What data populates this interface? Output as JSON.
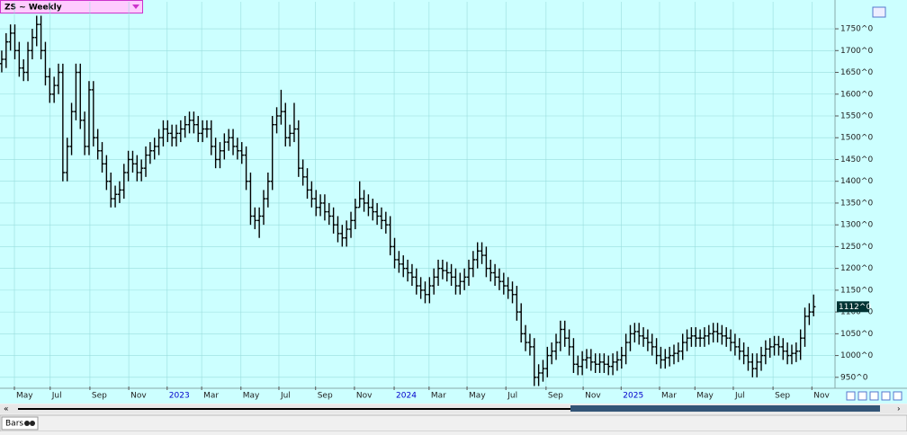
{
  "chart_data": {
    "type": "ohlc",
    "title": "ZS ~ Weekly",
    "color": "#000000",
    "grid": true,
    "open": [
      1670,
      1680,
      1720,
      1740,
      1700,
      1660,
      1650,
      1700,
      1730,
      1760,
      1700,
      1640,
      1600,
      1620,
      1650,
      1420,
      1480,
      1560,
      1650,
      1540,
      1480,
      1610,
      1500,
      1470,
      1440,
      1400,
      1360,
      1370,
      1380,
      1420,
      1450,
      1440,
      1420,
      1430,
      1460,
      1470,
      1480,
      1500,
      1520,
      1510,
      1500,
      1510,
      1520,
      1530,
      1540,
      1530,
      1510,
      1520,
      1520,
      1480,
      1450,
      1470,
      1490,
      1500,
      1480,
      1470,
      1460,
      1400,
      1320,
      1310,
      1320,
      1360,
      1400,
      1530,
      1550,
      1560,
      1500,
      1510,
      1520,
      1430,
      1410,
      1380,
      1360,
      1340,
      1350,
      1330,
      1320,
      1300,
      1280,
      1270,
      1290,
      1310,
      1340,
      1360,
      1350,
      1340,
      1330,
      1320,
      1310,
      1300,
      1250,
      1220,
      1210,
      1200,
      1190,
      1180,
      1160,
      1150,
      1140,
      1160,
      1180,
      1200,
      1195,
      1190,
      1180,
      1160,
      1170,
      1180,
      1200,
      1220,
      1240,
      1230,
      1200,
      1190,
      1180,
      1170,
      1160,
      1150,
      1140,
      1100,
      1050,
      1030,
      1020,
      950,
      960,
      970,
      1000,
      1010,
      1030,
      1060,
      1040,
      1020,
      980,
      975,
      990,
      995,
      985,
      980,
      985,
      980,
      975,
      985,
      990,
      1000,
      1030,
      1050,
      1055,
      1045,
      1040,
      1030,
      1020,
      1000,
      990,
      995,
      1000,
      1005,
      1010,
      1030,
      1040,
      1045,
      1040,
      1040,
      1045,
      1050,
      1055,
      1050,
      1045,
      1040,
      1030,
      1020,
      1010,
      1000,
      985,
      970,
      985,
      1000,
      1015,
      1020,
      1025,
      1020,
      1010,
      1000,
      1005,
      1010,
      1040,
      1090,
      1100
    ],
    "high": [
      1700,
      1740,
      1760,
      1760,
      1720,
      1680,
      1720,
      1750,
      1780,
      1780,
      1720,
      1660,
      1640,
      1670,
      1670,
      1500,
      1580,
      1670,
      1670,
      1560,
      1630,
      1630,
      1520,
      1490,
      1460,
      1420,
      1390,
      1400,
      1440,
      1470,
      1470,
      1460,
      1450,
      1480,
      1490,
      1500,
      1520,
      1540,
      1540,
      1530,
      1530,
      1540,
      1550,
      1560,
      1560,
      1550,
      1540,
      1540,
      1540,
      1500,
      1490,
      1510,
      1520,
      1520,
      1500,
      1490,
      1480,
      1420,
      1340,
      1340,
      1380,
      1420,
      1550,
      1570,
      1610,
      1580,
      1530,
      1580,
      1540,
      1450,
      1430,
      1400,
      1380,
      1370,
      1370,
      1350,
      1340,
      1320,
      1300,
      1310,
      1330,
      1360,
      1400,
      1380,
      1370,
      1360,
      1350,
      1340,
      1330,
      1320,
      1270,
      1240,
      1230,
      1220,
      1210,
      1200,
      1180,
      1170,
      1180,
      1200,
      1220,
      1220,
      1215,
      1210,
      1200,
      1190,
      1200,
      1220,
      1240,
      1260,
      1260,
      1250,
      1220,
      1210,
      1200,
      1190,
      1180,
      1170,
      1160,
      1120,
      1070,
      1050,
      1040,
      980,
      990,
      1020,
      1030,
      1050,
      1080,
      1080,
      1060,
      1040,
      1000,
      1010,
      1015,
      1015,
      1005,
      1005,
      1005,
      1000,
      1005,
      1010,
      1020,
      1050,
      1070,
      1075,
      1075,
      1065,
      1060,
      1050,
      1040,
      1020,
      1015,
      1020,
      1025,
      1030,
      1050,
      1060,
      1065,
      1065,
      1060,
      1065,
      1070,
      1075,
      1075,
      1070,
      1065,
      1060,
      1050,
      1040,
      1030,
      1020,
      1005,
      1005,
      1020,
      1035,
      1040,
      1045,
      1045,
      1040,
      1030,
      1025,
      1030,
      1060,
      1110,
      1120,
      1140
    ],
    "low": [
      1650,
      1660,
      1700,
      1680,
      1640,
      1630,
      1630,
      1680,
      1710,
      1680,
      1620,
      1580,
      1580,
      1600,
      1400,
      1400,
      1460,
      1540,
      1520,
      1460,
      1460,
      1480,
      1450,
      1420,
      1380,
      1340,
      1340,
      1350,
      1360,
      1400,
      1420,
      1400,
      1400,
      1410,
      1440,
      1450,
      1460,
      1480,
      1490,
      1480,
      1480,
      1490,
      1500,
      1510,
      1510,
      1490,
      1490,
      1500,
      1460,
      1430,
      1430,
      1450,
      1470,
      1460,
      1450,
      1440,
      1380,
      1300,
      1290,
      1270,
      1300,
      1340,
      1380,
      1510,
      1530,
      1480,
      1480,
      1490,
      1410,
      1390,
      1360,
      1340,
      1320,
      1320,
      1310,
      1300,
      1280,
      1260,
      1250,
      1250,
      1270,
      1290,
      1340,
      1330,
      1320,
      1310,
      1300,
      1290,
      1280,
      1230,
      1200,
      1190,
      1180,
      1170,
      1160,
      1140,
      1130,
      1120,
      1120,
      1140,
      1160,
      1175,
      1170,
      1160,
      1140,
      1140,
      1150,
      1160,
      1180,
      1200,
      1210,
      1180,
      1170,
      1160,
      1150,
      1140,
      1130,
      1120,
      1080,
      1030,
      1010,
      1000,
      930,
      930,
      940,
      950,
      980,
      990,
      1010,
      1020,
      1000,
      960,
      955,
      955,
      970,
      965,
      960,
      960,
      960,
      955,
      955,
      965,
      970,
      980,
      1010,
      1030,
      1025,
      1020,
      1010,
      1000,
      980,
      970,
      970,
      975,
      980,
      985,
      990,
      1010,
      1020,
      1020,
      1020,
      1020,
      1025,
      1030,
      1030,
      1025,
      1020,
      1010,
      1000,
      990,
      980,
      965,
      950,
      950,
      965,
      980,
      995,
      1000,
      1000,
      990,
      980,
      980,
      985,
      990,
      1020,
      1070,
      1090
    ],
    "close": [
      1680,
      1720,
      1740,
      1700,
      1660,
      1650,
      1700,
      1730,
      1760,
      1700,
      1640,
      1600,
      1620,
      1650,
      1420,
      1480,
      1560,
      1650,
      1540,
      1480,
      1610,
      1500,
      1470,
      1440,
      1400,
      1360,
      1370,
      1380,
      1420,
      1450,
      1440,
      1420,
      1430,
      1460,
      1470,
      1480,
      1500,
      1520,
      1510,
      1500,
      1510,
      1520,
      1530,
      1540,
      1530,
      1510,
      1520,
      1520,
      1480,
      1450,
      1470,
      1490,
      1500,
      1480,
      1470,
      1460,
      1400,
      1320,
      1310,
      1320,
      1360,
      1400,
      1530,
      1550,
      1560,
      1500,
      1510,
      1520,
      1430,
      1410,
      1380,
      1360,
      1340,
      1350,
      1330,
      1320,
      1300,
      1280,
      1270,
      1290,
      1310,
      1340,
      1360,
      1350,
      1340,
      1330,
      1320,
      1310,
      1300,
      1250,
      1220,
      1210,
      1200,
      1190,
      1180,
      1160,
      1150,
      1140,
      1160,
      1180,
      1200,
      1195,
      1190,
      1180,
      1160,
      1170,
      1180,
      1200,
      1220,
      1240,
      1230,
      1200,
      1190,
      1180,
      1170,
      1160,
      1150,
      1140,
      1100,
      1050,
      1030,
      1020,
      950,
      960,
      970,
      1000,
      1010,
      1030,
      1060,
      1040,
      1020,
      980,
      975,
      990,
      995,
      985,
      980,
      985,
      980,
      975,
      985,
      990,
      1000,
      1030,
      1050,
      1055,
      1045,
      1040,
      1030,
      1020,
      1000,
      990,
      995,
      1000,
      1005,
      1010,
      1030,
      1040,
      1045,
      1040,
      1040,
      1045,
      1050,
      1055,
      1050,
      1045,
      1040,
      1030,
      1020,
      1010,
      1000,
      985,
      970,
      985,
      1000,
      1015,
      1020,
      1025,
      1020,
      1010,
      1000,
      1005,
      1010,
      1040,
      1090,
      1100,
      1112
    ],
    "xlim": [
      -0.4,
      190.9
    ],
    "ylim": [
      929,
      1812
    ],
    "xticks": [
      {
        "value": 2.9,
        "label": "May"
      },
      {
        "value": 11.1,
        "label": "Jul"
      },
      {
        "value": 20.2,
        "label": "Sep"
      },
      {
        "value": 29.1,
        "label": "Nov"
      },
      {
        "value": 37.9,
        "label": "2023"
      },
      {
        "value": 45.8,
        "label": "Mar"
      },
      {
        "value": 54.8,
        "label": "May"
      },
      {
        "value": 63.5,
        "label": "Jul"
      },
      {
        "value": 71.9,
        "label": "Sep"
      },
      {
        "value": 80.8,
        "label": "Nov"
      },
      {
        "value": 89.9,
        "label": "2024"
      },
      {
        "value": 97.9,
        "label": "Mar"
      },
      {
        "value": 106.6,
        "label": "May"
      },
      {
        "value": 115.5,
        "label": "Jul"
      },
      {
        "value": 124.7,
        "label": "Sep"
      },
      {
        "value": 133.2,
        "label": "Nov"
      },
      {
        "value": 141.9,
        "label": "2025"
      },
      {
        "value": 150.7,
        "label": "Mar"
      },
      {
        "value": 158.8,
        "label": "May"
      },
      {
        "value": 167.6,
        "label": "Jul"
      },
      {
        "value": 176.7,
        "label": "Sep"
      },
      {
        "value": 185.6,
        "label": "Nov"
      }
    ],
    "yticks": [
      {
        "value": 950,
        "label": "950^0"
      },
      {
        "value": 1000,
        "label": "1000^0"
      },
      {
        "value": 1050,
        "label": "1050^0"
      },
      {
        "value": 1100,
        "label": "1100^0"
      },
      {
        "value": 1150,
        "label": "1150^0"
      },
      {
        "value": 1200,
        "label": "1200^0"
      },
      {
        "value": 1250,
        "label": "1250^0"
      },
      {
        "value": 1300,
        "label": "1300^0"
      },
      {
        "value": 1350,
        "label": "1350^0"
      },
      {
        "value": 1400,
        "label": "1400^0"
      },
      {
        "value": 1450,
        "label": "1450^0"
      },
      {
        "value": 1500,
        "label": "1500^0"
      },
      {
        "value": 1550,
        "label": "1550^0"
      },
      {
        "value": 1600,
        "label": "1600^0"
      },
      {
        "value": 1650,
        "label": "1650^0"
      },
      {
        "value": 1700,
        "label": "1700^0"
      },
      {
        "value": 1750,
        "label": "1750^0"
      }
    ],
    "last_label": {
      "value": 1112,
      "label": "1112^0"
    },
    "toolbar_label": "Bars"
  }
}
